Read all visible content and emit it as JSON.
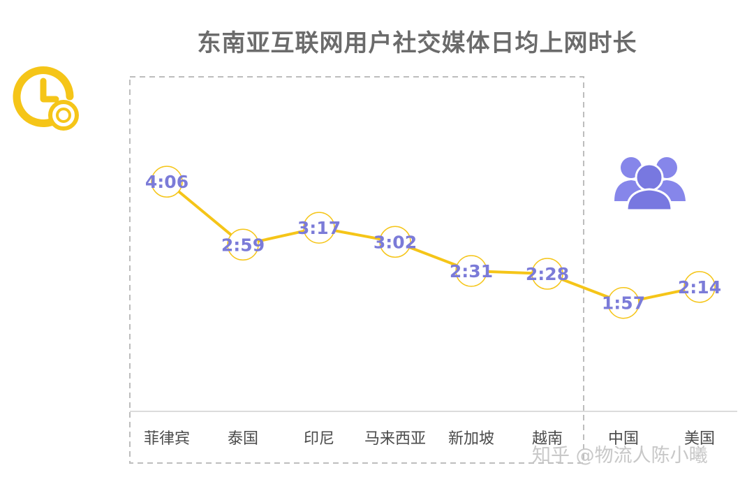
{
  "chart_data": {
    "type": "line",
    "title": "东南亚互联网用户社交媒体日均上网时长",
    "categories": [
      "菲律宾",
      "泰国",
      "印尼",
      "马来西亚",
      "新加坡",
      "越南",
      "中国",
      "美国"
    ],
    "labels": [
      "4:06",
      "2:59",
      "3:17",
      "3:02",
      "2:31",
      "2:28",
      "1:57",
      "2:14"
    ],
    "values": [
      246,
      179,
      197,
      182,
      151,
      148,
      117,
      134
    ],
    "value_unit": "minutes",
    "ylim": [
      0,
      300
    ],
    "grid": false,
    "line_color": "#f5c518",
    "label_color": "#7b7bd8"
  },
  "icons": {
    "clock": "clock-coin-icon",
    "users": "users-group-icon"
  },
  "watermark": "知乎 @物流人陈小曦"
}
